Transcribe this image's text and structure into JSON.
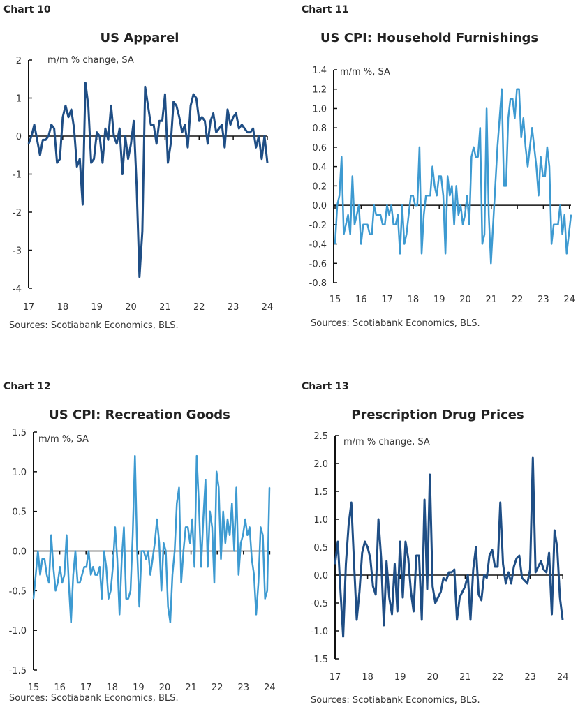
{
  "chart_data": [
    {
      "type": "line",
      "label": "Chart 10",
      "title": "US Apparel",
      "unit_note": "m/m % change, SA",
      "source": "Sources: Scotiabank Economics, BLS.",
      "color": "#1f4e85",
      "xlim": [
        17,
        24
      ],
      "ylim": [
        -4,
        2
      ],
      "x_ticks": [
        "17",
        "18",
        "19",
        "20",
        "21",
        "22",
        "23",
        "24"
      ],
      "y_ticks": [
        "2",
        "1",
        "0",
        "-1",
        "-2",
        "-3",
        "-4"
      ],
      "values": [
        -0.2,
        0,
        0.3,
        -0.1,
        -0.5,
        -0.1,
        -0.1,
        0,
        0.3,
        0.2,
        -0.7,
        -0.6,
        0.5,
        0.8,
        0.5,
        0.7,
        0.2,
        -0.8,
        -0.6,
        -1.8,
        1.4,
        0.8,
        -0.7,
        -0.6,
        0.1,
        0,
        -0.7,
        0.2,
        -0.1,
        0.8,
        0,
        -0.2,
        0.2,
        -1.0,
        0,
        -0.6,
        -0.2,
        0.4,
        -1.3,
        -3.7,
        -2.5,
        1.3,
        0.8,
        0.3,
        0.3,
        -0.2,
        0.4,
        0.4,
        1.1,
        -0.7,
        -0.2,
        0.9,
        0.8,
        0.5,
        0.1,
        0.3,
        -0.3,
        0.8,
        1.1,
        1.0,
        0.4,
        0.5,
        0.4,
        -0.2,
        0.4,
        0.6,
        0.1,
        0.2,
        0.3,
        -0.3,
        0.7,
        0.3,
        0.5,
        0.6,
        0.2,
        0.3,
        0.2,
        0.1,
        0.1,
        0.2,
        -0.3,
        0,
        -0.6,
        0,
        -0.7
      ]
    },
    {
      "type": "line",
      "label": "Chart 11",
      "title": "US CPI: Household Furnishings",
      "unit_note": "m/m %, SA",
      "source": "Sources: Scotiabank Economics, BLS.",
      "color": "#3d9ad1",
      "xlim": [
        15,
        24.1
      ],
      "ylim": [
        -0.8,
        1.4
      ],
      "x_ticks": [
        "15",
        "16",
        "17",
        "18",
        "19",
        "20",
        "21",
        "22",
        "23",
        "24"
      ],
      "y_ticks": [
        "1.4",
        "1.2",
        "1.0",
        "0.8",
        "0.6",
        "0.4",
        "0.2",
        "0.0",
        "-0.2",
        "-0.4",
        "-0.6",
        "-0.8"
      ],
      "values": [
        -0.4,
        0,
        0.1,
        0.5,
        -0.3,
        -0.2,
        -0.1,
        -0.3,
        0.3,
        -0.2,
        -0.1,
        0,
        -0.4,
        -0.2,
        -0.2,
        -0.2,
        -0.3,
        -0.3,
        0,
        -0.1,
        -0.1,
        -0.1,
        -0.2,
        -0.2,
        0,
        -0.1,
        0,
        -0.2,
        -0.2,
        -0.1,
        -0.5,
        0,
        -0.4,
        -0.3,
        -0.1,
        0.1,
        0.1,
        0,
        0,
        0.6,
        -0.5,
        -0.1,
        0.1,
        0.1,
        0.1,
        0.4,
        0.2,
        0.1,
        0.3,
        0.3,
        0.1,
        -0.5,
        0.3,
        0.1,
        0.2,
        -0.2,
        0.2,
        -0.1,
        0,
        -0.2,
        -0.1,
        0.1,
        -0.2,
        0.5,
        0.6,
        0.5,
        0.5,
        0.8,
        -0.4,
        -0.3,
        1.0,
        -0.1,
        -0.6,
        -0.2,
        0.2,
        0.6,
        0.9,
        1.2,
        0.2,
        0.2,
        0.9,
        1.1,
        1.1,
        0.9,
        1.2,
        1.2,
        0.7,
        0.9,
        0.6,
        0.4,
        0.6,
        0.8,
        0.6,
        0.4,
        0.1,
        0.5,
        0.3,
        0.3,
        0.6,
        0.4,
        -0.4,
        -0.2,
        -0.2,
        -0.2,
        0,
        -0.3,
        -0.1,
        -0.5,
        -0.3,
        -0.1
      ]
    },
    {
      "type": "line",
      "label": "Chart 12",
      "title": "US CPI: Recreation Goods",
      "unit_note": "m/m %, SA",
      "source": "Sources: Scotiabank Economics, BLS.",
      "color": "#3d9ad1",
      "xlim": [
        15,
        24
      ],
      "ylim": [
        -1.5,
        1.5
      ],
      "x_ticks": [
        "15",
        "16",
        "17",
        "18",
        "19",
        "20",
        "21",
        "22",
        "23",
        "24"
      ],
      "y_ticks": [
        "1.5",
        "1.0",
        "0.5",
        "0.0",
        "-0.5",
        "-1.0",
        "-1.5"
      ],
      "values": [
        -0.6,
        -0.3,
        0,
        -0.3,
        -0.1,
        -0.1,
        -0.3,
        -0.4,
        0.2,
        -0.2,
        -0.5,
        -0.4,
        -0.2,
        -0.4,
        -0.3,
        0.2,
        -0.4,
        -0.9,
        -0.3,
        0,
        -0.4,
        -0.4,
        -0.3,
        -0.2,
        -0.2,
        0,
        -0.3,
        -0.2,
        -0.3,
        -0.3,
        -0.2,
        -0.6,
        0,
        -0.2,
        -0.6,
        -0.5,
        -0.2,
        0.3,
        -0.1,
        -0.8,
        -0.1,
        0.3,
        -0.6,
        -0.6,
        -0.5,
        0.2,
        1.2,
        0,
        -0.7,
        0,
        0,
        -0.1,
        0,
        -0.3,
        -0.1,
        0.1,
        0.4,
        0.1,
        -0.5,
        0.1,
        0,
        -0.7,
        -0.9,
        -0.3,
        0,
        0.6,
        0.8,
        -0.4,
        0,
        0.3,
        0.3,
        0.1,
        0.4,
        -0.2,
        1.2,
        0.6,
        -0.2,
        0.4,
        0.9,
        -0.2,
        0.5,
        0.3,
        -0.4,
        1.0,
        0.8,
        -0.1,
        0.5,
        0.1,
        0.4,
        0.2,
        0.6,
        0,
        0.8,
        -0.3,
        0.1,
        0.2,
        0.4,
        0.2,
        0.3,
        -0.1,
        -0.3,
        -0.8,
        -0.4,
        0.3,
        0.2,
        -0.6,
        -0.5,
        0.8
      ]
    },
    {
      "type": "line",
      "label": "Chart 13",
      "title": "Prescription Drug Prices",
      "unit_note": "m/m % change, SA",
      "source": "Sources: Scotiabank Economics, BLS.",
      "color": "#1f4e85",
      "xlim": [
        17,
        24
      ],
      "ylim": [
        -1.5,
        2.5
      ],
      "x_ticks": [
        "17",
        "18",
        "19",
        "20",
        "21",
        "22",
        "23",
        "24"
      ],
      "y_ticks": [
        "2.5",
        "2.0",
        "1.5",
        "1.0",
        "0.5",
        "0.0",
        "-0.5",
        "-1.0",
        "-1.5"
      ],
      "values": [
        0.2,
        0.6,
        -0.3,
        -1.1,
        0.2,
        0.9,
        1.3,
        0.2,
        -0.8,
        -0.3,
        0.4,
        0.6,
        0.5,
        0.3,
        -0.2,
        -0.35,
        1.0,
        0.3,
        -0.9,
        0.25,
        -0.4,
        -0.7,
        0.2,
        -0.65,
        0.6,
        -0.4,
        0.6,
        0.3,
        -0.3,
        -0.65,
        0.35,
        0.35,
        -0.8,
        1.35,
        -0.25,
        1.8,
        -0.2,
        -0.5,
        -0.4,
        -0.3,
        -0.05,
        -0.1,
        0.05,
        0.05,
        0.1,
        -0.8,
        -0.4,
        -0.3,
        -0.2,
        0,
        -0.8,
        0.1,
        0.5,
        -0.35,
        -0.45,
        0,
        -0.05,
        0.35,
        0.45,
        0.15,
        0.15,
        1.3,
        0.2,
        -0.15,
        0.05,
        -0.15,
        0.15,
        0.3,
        0.35,
        -0.05,
        -0.1,
        -0.15,
        0.1,
        2.1,
        0.05,
        0.15,
        0.25,
        0.1,
        0.05,
        0.4,
        -0.7,
        0.8,
        0.5,
        -0.4,
        -0.8
      ]
    }
  ]
}
